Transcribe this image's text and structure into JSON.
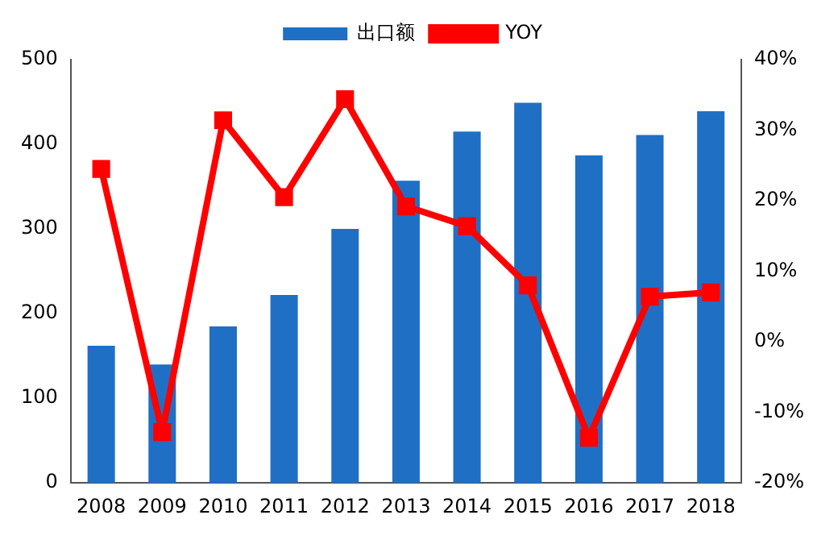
{
  "chart_data": {
    "type": "bar",
    "categories": [
      "2008",
      "2009",
      "2010",
      "2011",
      "2012",
      "2013",
      "2014",
      "2015",
      "2016",
      "2017",
      "2018"
    ],
    "series": [
      {
        "name": "出口额",
        "color": "#1f6fc5",
        "values": [
          162,
          140,
          185,
          222,
          300,
          357,
          415,
          449,
          387,
          411,
          439
        ]
      },
      {
        "name": "YOY",
        "type": "line",
        "axis": "y2",
        "color": "#ff0000",
        "marker": "square",
        "values": [
          24.5,
          -12.8,
          31.4,
          20.5,
          34.4,
          19.2,
          16.4,
          8,
          -13.6,
          6.4,
          7
        ]
      }
    ],
    "ylim": [
      0,
      500
    ],
    "yticks": [
      0,
      100,
      200,
      300,
      400,
      500
    ],
    "y2lim": [
      -20,
      40
    ],
    "y2ticks": [
      {
        "value": -20,
        "label": "-20%"
      },
      {
        "value": -10,
        "label": "-10%"
      },
      {
        "value": 0,
        "label": "0%"
      },
      {
        "value": 10,
        "label": "10%"
      },
      {
        "value": 20,
        "label": "20%"
      },
      {
        "value": 30,
        "label": "30%"
      },
      {
        "value": 40,
        "label": "40%"
      }
    ],
    "grid": false,
    "legend": "top"
  }
}
